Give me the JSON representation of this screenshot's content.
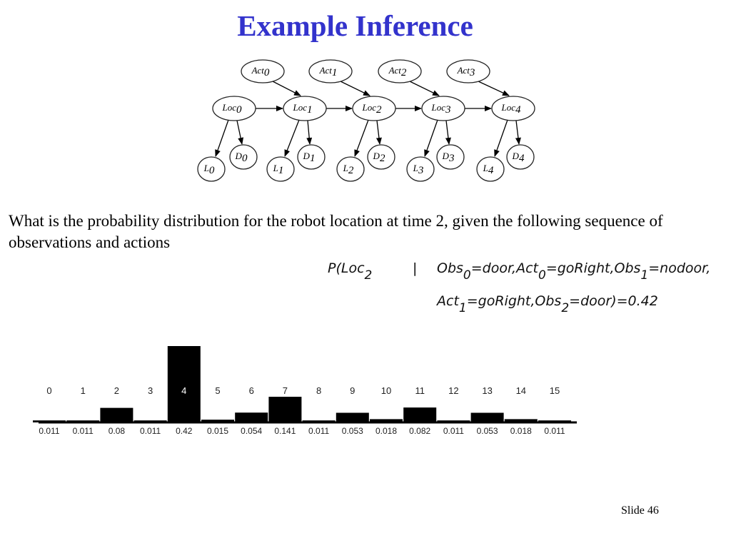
{
  "title": "Example Inference",
  "question": "What is the probability distribution for the robot location at time 2, given the following sequence of observations and actions",
  "formula": {
    "line1_head": "P(Loc",
    "line1_head_sub": "2",
    "line1_sep": "|",
    "line1_a": "Obs",
    "line1_a_sub": "0",
    "line1_b": "=door,Act",
    "line1_b_sub": "0",
    "line1_c": "=goRight,Obs",
    "line1_c_sub": "1",
    "line1_d": "=nodoor,",
    "line2_a": "Act",
    "line2_a_sub": "1",
    "line2_b": "=goRight,Obs",
    "line2_b_sub": "2",
    "line2_c": "=door)=0.42"
  },
  "diagram": {
    "act_nodes": [
      {
        "base": "Act",
        "sub": "0"
      },
      {
        "base": "Act",
        "sub": "1"
      },
      {
        "base": "Act",
        "sub": "2"
      },
      {
        "base": "Act",
        "sub": "3"
      }
    ],
    "loc_nodes": [
      {
        "base": "Loc",
        "sub": "0"
      },
      {
        "base": "Loc",
        "sub": "1"
      },
      {
        "base": "Loc",
        "sub": "2"
      },
      {
        "base": "Loc",
        "sub": "3"
      },
      {
        "base": "Loc",
        "sub": "4"
      }
    ],
    "l_nodes": [
      {
        "base": "L",
        "sub": "0"
      },
      {
        "base": "L",
        "sub": "1"
      },
      {
        "base": "L",
        "sub": "2"
      },
      {
        "base": "L",
        "sub": "3"
      },
      {
        "base": "L",
        "sub": "4"
      }
    ],
    "d_nodes": [
      {
        "base": "D",
        "sub": "0"
      },
      {
        "base": "D",
        "sub": "1"
      },
      {
        "base": "D",
        "sub": "2"
      },
      {
        "base": "D",
        "sub": "3"
      },
      {
        "base": "D",
        "sub": "4"
      }
    ]
  },
  "chart_data": {
    "type": "bar",
    "categories": [
      "0",
      "1",
      "2",
      "3",
      "4",
      "5",
      "6",
      "7",
      "8",
      "9",
      "10",
      "11",
      "12",
      "13",
      "14",
      "15"
    ],
    "values": [
      0.011,
      0.011,
      0.08,
      0.011,
      0.42,
      0.015,
      0.054,
      0.141,
      0.011,
      0.053,
      0.018,
      0.082,
      0.011,
      0.053,
      0.018,
      0.011
    ],
    "value_labels": [
      "0.011",
      "0.011",
      "0.08",
      "0.011",
      "0.42",
      "0.015",
      "0.054",
      "0.141",
      "0.011",
      "0.053",
      "0.018",
      "0.082",
      "0.011",
      "0.053",
      "0.018",
      "0.011"
    ],
    "highlight_category": "4",
    "bar_color": "#000000",
    "title": "",
    "xlabel": "",
    "ylabel": ""
  },
  "slide_number": "Slide 46",
  "colors": {
    "title": "#3333cc",
    "text": "#000000",
    "background": "#ffffff"
  }
}
